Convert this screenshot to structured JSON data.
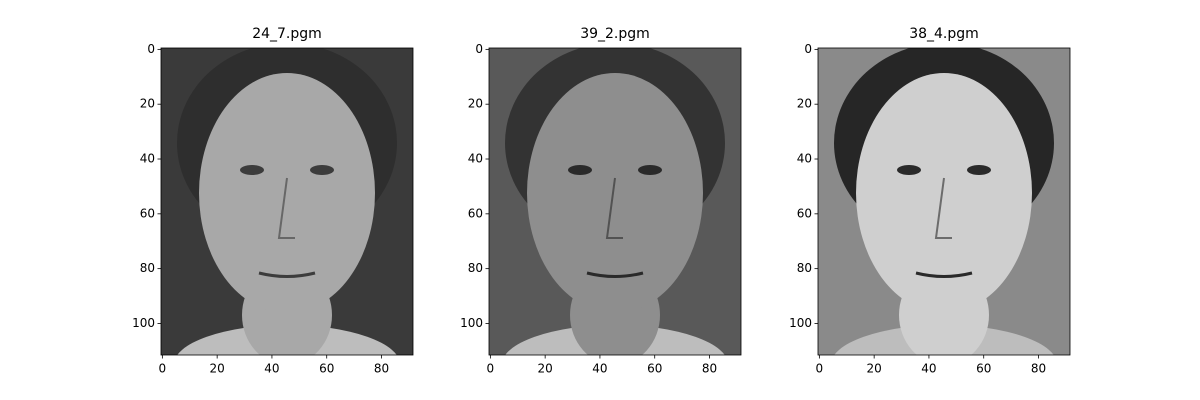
{
  "chart_data": [
    {
      "type": "image",
      "title": "24_7.pgm",
      "xlim": [
        -0.5,
        91.5
      ],
      "ylim": [
        111.5,
        -0.5
      ],
      "xticks": [
        0,
        20,
        40,
        60,
        80
      ],
      "yticks": [
        0,
        20,
        40,
        60,
        80,
        100
      ]
    },
    {
      "type": "image",
      "title": "39_2.pgm",
      "xlim": [
        -0.5,
        91.5
      ],
      "ylim": [
        111.5,
        -0.5
      ],
      "xticks": [
        0,
        20,
        40,
        60,
        80
      ],
      "yticks": [
        0,
        20,
        40,
        60,
        80,
        100
      ]
    },
    {
      "type": "image",
      "title": "38_4.pgm",
      "xlim": [
        -0.5,
        91.5
      ],
      "ylim": [
        111.5,
        -0.5
      ],
      "xticks": [
        0,
        20,
        40,
        60,
        80
      ],
      "yticks": [
        0,
        20,
        40,
        60,
        80,
        100
      ]
    }
  ]
}
